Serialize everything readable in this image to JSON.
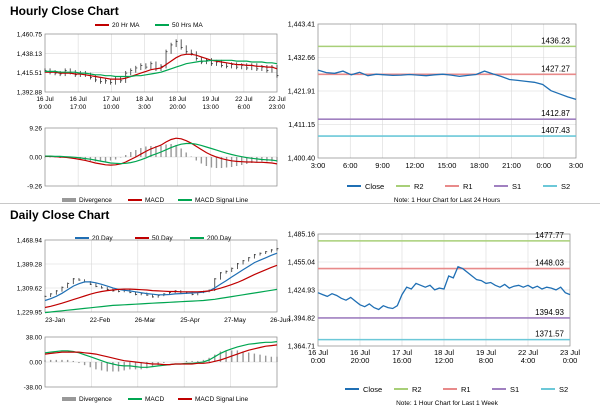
{
  "sections": {
    "hourly_title": "Hourly Close Chart",
    "daily_title": "Daily Close Chart"
  },
  "colors": {
    "close": "#1f6fb4",
    "ma_short": "#c00000",
    "ma_long": "#00a651",
    "r2": "#a8cf78",
    "r1": "#e88a8a",
    "s1": "#a080c0",
    "s2": "#6cc8d8",
    "bars": "#333333",
    "divergence": "#999999",
    "grid": "#d8d8d8"
  },
  "chart_data": [
    {
      "id": "hourly_price",
      "type": "line",
      "legend": [
        "20 Hr MA",
        "50 Hrs MA"
      ],
      "x_tick_labels": [
        [
          "16 Jul",
          "9:00"
        ],
        [
          "16 Jul",
          "17:00"
        ],
        [
          "17 Jul",
          "10:00"
        ],
        [
          "18 Jul",
          "3:00"
        ],
        [
          "18 Jul",
          "20:00"
        ],
        [
          "19 Jul",
          "13:00"
        ],
        [
          "22 Jul",
          "6:00"
        ],
        [
          "22 Jul",
          "23:00"
        ]
      ],
      "y_tick_labels": [
        "1,460.75",
        "1,438.13",
        "1,415.51",
        "1,392.88"
      ],
      "ylim": [
        1392.88,
        1460.75
      ],
      "series": [
        {
          "name": "Close",
          "values": [
            1418,
            1416,
            1415,
            1414,
            1418,
            1416,
            1413,
            1415,
            1413,
            1410,
            1407,
            1405,
            1406,
            1404,
            1408,
            1406,
            1415,
            1418,
            1421,
            1424,
            1422,
            1426,
            1420,
            1423,
            1440,
            1448,
            1452,
            1445,
            1440,
            1438,
            1432,
            1428,
            1430,
            1426,
            1428,
            1424,
            1423,
            1425,
            1422,
            1424,
            1421,
            1424,
            1420,
            1422,
            1418,
            1422,
            1412
          ]
        },
        {
          "name": "20 Hr MA",
          "values": [
            1416,
            1416,
            1416,
            1415,
            1415,
            1415,
            1414,
            1414,
            1413,
            1412,
            1411,
            1410,
            1409,
            1408,
            1408,
            1408,
            1409,
            1411,
            1413,
            1415,
            1417,
            1419,
            1420,
            1421,
            1425,
            1429,
            1433,
            1436,
            1437,
            1437,
            1436,
            1434,
            1432,
            1430,
            1429,
            1428,
            1427,
            1426,
            1425,
            1425,
            1424,
            1424,
            1423,
            1423,
            1422,
            1422,
            1420
          ]
        },
        {
          "name": "50 Hrs MA",
          "values": [
            1417,
            1417,
            1417,
            1416,
            1416,
            1416,
            1416,
            1415,
            1415,
            1414,
            1413,
            1413,
            1412,
            1412,
            1411,
            1411,
            1411,
            1411,
            1412,
            1412,
            1413,
            1414,
            1415,
            1416,
            1418,
            1420,
            1422,
            1424,
            1426,
            1427,
            1428,
            1429,
            1429,
            1430,
            1430,
            1430,
            1430,
            1430,
            1429,
            1429,
            1429,
            1428,
            1428,
            1428,
            1427,
            1427,
            1426
          ]
        }
      ]
    },
    {
      "id": "hourly_macd",
      "type": "line",
      "legend": [
        "Divergence",
        "MACD",
        "MACD Signal Line"
      ],
      "y_tick_labels": [
        "9.26",
        "0.00",
        "-9.26"
      ],
      "ylim": [
        -9.26,
        9.26
      ],
      "series": [
        {
          "name": "MACD",
          "values": [
            0.2,
            0.2,
            0.1,
            0,
            -0.1,
            -0.3,
            -0.5,
            -0.8,
            -1.1,
            -1.5,
            -1.9,
            -2.2,
            -2.5,
            -2.6,
            -2.5,
            -2.2,
            -1.6,
            -0.8,
            0,
            0.9,
            1.8,
            2.6,
            3.2,
            3.8,
            4.8,
            5.6,
            6.0,
            5.8,
            5.2,
            4.4,
            3.4,
            2.4,
            1.4,
            0.6,
            0,
            -0.5,
            -0.9,
            -1.2,
            -1.4,
            -1.5,
            -1.6,
            -1.6,
            -1.7,
            -1.7,
            -1.8,
            -1.9,
            -2.2
          ]
        },
        {
          "name": "MACD Signal Line",
          "values": [
            0.3,
            0.3,
            0.2,
            0.2,
            0.1,
            0,
            -0.1,
            -0.3,
            -0.5,
            -0.7,
            -1.0,
            -1.3,
            -1.6,
            -1.9,
            -2.0,
            -2.1,
            -2.0,
            -1.8,
            -1.4,
            -0.9,
            -0.3,
            0.4,
            1.0,
            1.6,
            2.3,
            3.0,
            3.6,
            4.1,
            4.3,
            4.3,
            4.1,
            3.7,
            3.2,
            2.7,
            2.2,
            1.7,
            1.2,
            0.8,
            0.4,
            0.1,
            -0.2,
            -0.4,
            -0.6,
            -0.8,
            -0.9,
            -1.0,
            -1.2
          ]
        }
      ]
    },
    {
      "id": "hourly_pivot",
      "type": "line",
      "legend": [
        "Close",
        "R2",
        "R1",
        "S1",
        "S2"
      ],
      "note": "Note: 1 Hour Chart for Last 24 Hours",
      "x_tick_labels": [
        "3:00",
        "6:00",
        "9:00",
        "12:00",
        "15:00",
        "18:00",
        "21:00",
        "0:00",
        "3:00"
      ],
      "y_tick_labels": [
        "1,443.41",
        "1,432.66",
        "1,421.91",
        "1,411.15",
        "1,400.40"
      ],
      "ylim": [
        1400.4,
        1443.41
      ],
      "levels": [
        {
          "name": "R2",
          "value": 1436.23,
          "label": "1436.23"
        },
        {
          "name": "R1",
          "value": 1427.27,
          "label": "1427.27"
        },
        {
          "name": "S1",
          "value": 1412.87,
          "label": "1412.87"
        },
        {
          "name": "S2",
          "value": 1407.43,
          "label": "1407.43"
        }
      ],
      "series": [
        {
          "name": "Close",
          "values": [
            1428.6,
            1427.8,
            1427.6,
            1428.3,
            1427.1,
            1427.9,
            1426.8,
            1427.3,
            1427.1,
            1426.9,
            1427.0,
            1427.2,
            1427.0,
            1426.8,
            1427.1,
            1427.3,
            1427.0,
            1426.6,
            1426.9,
            1427.2,
            1428.3,
            1427.4,
            1426.6,
            1425.6,
            1425.3,
            1425.0,
            1424.7,
            1424.0,
            1422.0,
            1421.0,
            1420.0,
            1419.2
          ]
        }
      ]
    },
    {
      "id": "daily_price",
      "type": "line",
      "legend": [
        "20 Day",
        "50 Day",
        "200 Day"
      ],
      "x_tick_labels": [
        "23-Jan",
        "22-Feb",
        "26-Mar",
        "25-Apr",
        "27-May",
        "26-Jun"
      ],
      "y_tick_labels": [
        "1,468.94",
        "1,389.28",
        "1,309.62",
        "1,229.95"
      ],
      "ylim": [
        1229.95,
        1468.94
      ],
      "series": [
        {
          "name": "Close",
          "values": [
            1282,
            1290,
            1300,
            1312,
            1325,
            1340,
            1336,
            1330,
            1322,
            1315,
            1310,
            1305,
            1300,
            1298,
            1302,
            1295,
            1288,
            1292,
            1286,
            1280,
            1285,
            1290,
            1295,
            1300,
            1292,
            1296,
            1288,
            1295,
            1298,
            1302,
            1340,
            1360,
            1365,
            1375,
            1390,
            1400,
            1410,
            1420,
            1425,
            1430,
            1436,
            1440
          ]
        },
        {
          "name": "20 Day",
          "values": [
            1268,
            1274,
            1282,
            1292,
            1304,
            1316,
            1324,
            1330,
            1330,
            1327,
            1322,
            1316,
            1310,
            1305,
            1302,
            1300,
            1297,
            1294,
            1291,
            1289,
            1287,
            1287,
            1288,
            1290,
            1291,
            1292,
            1293,
            1294,
            1296,
            1300,
            1310,
            1322,
            1334,
            1346,
            1358,
            1370,
            1382,
            1394,
            1402,
            1410,
            1418,
            1425
          ]
        },
        {
          "name": "50 Day",
          "values": [
            1245,
            1249,
            1254,
            1259,
            1265,
            1271,
            1277,
            1283,
            1289,
            1294,
            1298,
            1301,
            1303,
            1305,
            1306,
            1306,
            1305,
            1304,
            1303,
            1301,
            1300,
            1299,
            1298,
            1298,
            1297,
            1297,
            1297,
            1297,
            1298,
            1300,
            1304,
            1309,
            1315,
            1321,
            1328,
            1336,
            1345,
            1354,
            1362,
            1370,
            1378,
            1385
          ]
        },
        {
          "name": "200 Day",
          "values": [
            1228,
            1230,
            1232,
            1234,
            1236,
            1238,
            1240,
            1242,
            1244,
            1246,
            1248,
            1250,
            1252,
            1253,
            1254,
            1255,
            1256,
            1257,
            1258,
            1259,
            1260,
            1261,
            1262,
            1263,
            1264,
            1265,
            1266,
            1267,
            1268,
            1270,
            1272,
            1275,
            1278,
            1281,
            1284,
            1287,
            1290,
            1293,
            1296,
            1299,
            1302,
            1305
          ]
        }
      ]
    },
    {
      "id": "daily_macd",
      "type": "line",
      "legend": [
        "Divergence",
        "MACD",
        "MACD Signal Line"
      ],
      "y_tick_labels": [
        "38.00",
        "0.00",
        "-38.00"
      ],
      "ylim": [
        -38,
        38
      ],
      "series": [
        {
          "name": "MACD",
          "values": [
            14,
            15,
            16,
            17,
            17,
            16,
            14,
            11,
            8,
            5,
            2,
            -1,
            -3,
            -5,
            -6,
            -6,
            -7,
            -8,
            -8,
            -7,
            -6,
            -5,
            -4,
            -3,
            -3,
            -2,
            -2,
            -1,
            0,
            3,
            8,
            13,
            17,
            20,
            23,
            25,
            27,
            28,
            29,
            30,
            30,
            31
          ]
        },
        {
          "name": "MACD Signal Line",
          "values": [
            12,
            13,
            14,
            15,
            15,
            15,
            15,
            14,
            13,
            12,
            10,
            8,
            6,
            4,
            2,
            1,
            0,
            -1,
            -2,
            -3,
            -3,
            -4,
            -4,
            -3,
            -3,
            -3,
            -3,
            -2,
            -2,
            -1,
            1,
            3,
            6,
            9,
            12,
            15,
            18,
            20,
            22,
            24,
            25,
            26
          ]
        }
      ]
    },
    {
      "id": "daily_pivot",
      "type": "line",
      "legend": [
        "Close",
        "R2",
        "R1",
        "S1",
        "S2"
      ],
      "note": "Note: 1 Hour Chart for Last 1 Week",
      "x_tick_labels": [
        [
          "16 Jul",
          "0:00"
        ],
        [
          "16 Jul",
          "20:00"
        ],
        [
          "17 Jul",
          "16:00"
        ],
        [
          "18 Jul",
          "12:00"
        ],
        [
          "19 Jul",
          "8:00"
        ],
        [
          "22 Jul",
          "4:00"
        ],
        [
          "23 Jul",
          "0:00"
        ]
      ],
      "y_tick_labels": [
        "1,485.16",
        "1,455.04",
        "1,424.93",
        "1,394.82",
        "1,364.71"
      ],
      "ylim": [
        1364.71,
        1485.16
      ],
      "levels": [
        {
          "name": "R2",
          "value": 1477.77,
          "label": "1477.77"
        },
        {
          "name": "R1",
          "value": 1448.03,
          "label": "1448.03"
        },
        {
          "name": "S1",
          "value": 1394.93,
          "label": "1394.93"
        },
        {
          "name": "S2",
          "value": 1371.57,
          "label": "1371.57"
        }
      ],
      "series": [
        {
          "name": "Close",
          "values": [
            1422,
            1420,
            1418,
            1421,
            1419,
            1416,
            1414,
            1417,
            1413,
            1409,
            1407,
            1410,
            1406,
            1404,
            1408,
            1406,
            1405,
            1408,
            1420,
            1428,
            1426,
            1432,
            1430,
            1428,
            1430,
            1425,
            1427,
            1426,
            1440,
            1438,
            1450,
            1448,
            1444,
            1440,
            1436,
            1435,
            1432,
            1433,
            1430,
            1428,
            1431,
            1427,
            1429,
            1430,
            1428,
            1430,
            1427,
            1429,
            1426,
            1428,
            1427,
            1425,
            1428,
            1422,
            1420
          ]
        }
      ]
    }
  ]
}
